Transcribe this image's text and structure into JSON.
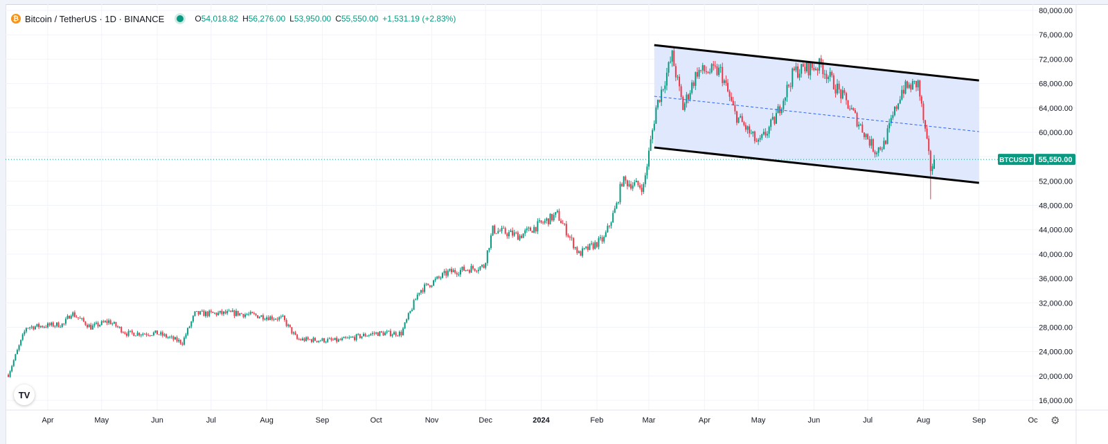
{
  "legend": {
    "symbol_text": "Bitcoin / TetherUS · 1D · BINANCE",
    "open_label": "O",
    "open": "54,018.82",
    "high_label": "H",
    "high": "56,276.00",
    "low_label": "L",
    "low": "53,950.00",
    "close_label": "C",
    "close": "55,550.00",
    "change": "+1,531.19 (+2.83%)",
    "coin_icon": "bitcoin-icon",
    "status_icon": "market-open-dot-icon"
  },
  "price_label": {
    "symbol": "BTCUSDT",
    "value": "55,550.00"
  },
  "logo_text": "TV",
  "colors": {
    "up": "#089981",
    "down": "#f23645",
    "channel_fill": "#dbe4fd",
    "channel_line": "#000000",
    "midline": "#2962ff",
    "grid": "#f0f3fa",
    "axis_text": "#131722",
    "price_tag": "#089981"
  },
  "chart_data": {
    "type": "candlestick",
    "title": "Bitcoin / TetherUS · 1D · BINANCE",
    "xlabel": "",
    "ylabel": "",
    "ylim": [
      15000,
      80000
    ],
    "y_ticks": [
      "80,000.00",
      "76,000.00",
      "72,000.00",
      "68,000.00",
      "64,000.00",
      "60,000.00",
      "56,000.00",
      "52,000.00",
      "48,000.00",
      "44,000.00",
      "40,000.00",
      "36,000.00",
      "32,000.00",
      "28,000.00",
      "24,000.00",
      "20,000.00",
      "16,000.00"
    ],
    "x_ticks": [
      "Apr",
      "May",
      "Jun",
      "Jul",
      "Aug",
      "Sep",
      "Oct",
      "Nov",
      "Dec",
      "2024",
      "Feb",
      "Mar",
      "Apr",
      "May",
      "Jun",
      "Jul",
      "Aug",
      "Sep",
      "Oc"
    ],
    "grid": true,
    "close_path": [
      [
        "2023-03-10",
        20200
      ],
      [
        "2023-03-20",
        28000
      ],
      [
        "2023-04-10",
        28500
      ],
      [
        "2023-04-14",
        30400
      ],
      [
        "2023-04-25",
        28000
      ],
      [
        "2023-05-05",
        29000
      ],
      [
        "2023-05-15",
        27000
      ],
      [
        "2023-06-01",
        27000
      ],
      [
        "2023-06-15",
        25500
      ],
      [
        "2023-06-22",
        30200
      ],
      [
        "2023-07-15",
        30300
      ],
      [
        "2023-08-10",
        29400
      ],
      [
        "2023-08-18",
        26000
      ],
      [
        "2023-09-10",
        25800
      ],
      [
        "2023-09-30",
        27000
      ],
      [
        "2023-10-15",
        27000
      ],
      [
        "2023-10-25",
        34000
      ],
      [
        "2023-11-10",
        37000
      ],
      [
        "2023-11-30",
        38000
      ],
      [
        "2023-12-05",
        44000
      ],
      [
        "2023-12-20",
        43000
      ],
      [
        "2024-01-10",
        46500
      ],
      [
        "2024-01-22",
        40000
      ],
      [
        "2024-02-05",
        42500
      ],
      [
        "2024-02-12",
        48000
      ],
      [
        "2024-02-15",
        52000
      ],
      [
        "2024-02-27",
        51000
      ],
      [
        "2024-03-05",
        64000
      ],
      [
        "2024-03-14",
        72500
      ],
      [
        "2024-03-20",
        64000
      ],
      [
        "2024-03-28",
        70000
      ],
      [
        "2024-04-10",
        70000
      ],
      [
        "2024-04-18",
        63000
      ],
      [
        "2024-05-01",
        58000
      ],
      [
        "2024-05-10",
        62000
      ],
      [
        "2024-05-21",
        70000
      ],
      [
        "2024-06-05",
        71000
      ],
      [
        "2024-06-20",
        64500
      ],
      [
        "2024-07-05",
        57000
      ],
      [
        "2024-07-10",
        58000
      ],
      [
        "2024-07-20",
        67000
      ],
      [
        "2024-07-29",
        68000
      ],
      [
        "2024-08-05",
        54000
      ],
      [
        "2024-08-07",
        55550
      ]
    ],
    "last": {
      "date": "2024-08-07",
      "open": 54018.82,
      "high": 56276.0,
      "low": 53950.0,
      "close": 55550.0
    },
    "annotations": [
      {
        "type": "channel_upper",
        "from": [
          "2024-03-04",
          74300
        ],
        "to": [
          "2024-09-01",
          68500
        ]
      },
      {
        "type": "channel_lower",
        "from": [
          "2024-03-04",
          57500
        ],
        "to": [
          "2024-09-01",
          51700
        ]
      },
      {
        "type": "channel_midline",
        "from": [
          "2024-03-04",
          65900
        ],
        "to": [
          "2024-09-01",
          60100
        ]
      }
    ]
  }
}
